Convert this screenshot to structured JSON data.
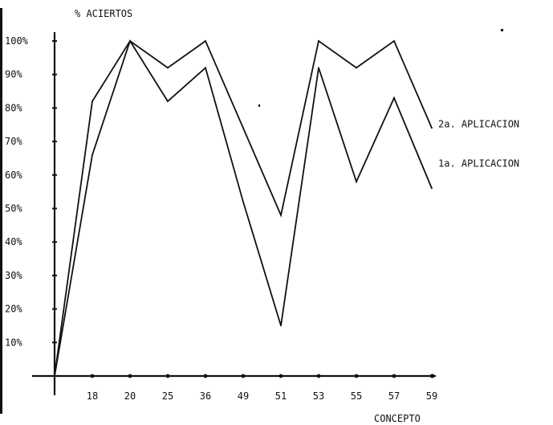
{
  "chart_data": {
    "type": "line",
    "ylabel": "% ACIERTOS",
    "xlabel": "CONCEPTO",
    "categories": [
      "",
      "18",
      "20",
      "25",
      "36",
      "49",
      "51",
      "53",
      "55",
      "57",
      "59"
    ],
    "y_ticks": [
      "10%",
      "20%",
      "30%",
      "40%",
      "50%",
      "60%",
      "70%",
      "80%",
      "90%",
      "100%"
    ],
    "ylim": [
      0,
      100
    ],
    "grid": false,
    "series": [
      {
        "name": "2a. APLICACION",
        "values": [
          0,
          82,
          100,
          92,
          100,
          74,
          48,
          100,
          92,
          100,
          74
        ]
      },
      {
        "name": "1a. APLICACION",
        "values": [
          0,
          66,
          100,
          82,
          92,
          52,
          15,
          92,
          58,
          83,
          56
        ]
      }
    ],
    "colors": {
      "ink": "#111111",
      "background": "#ffffff"
    }
  }
}
